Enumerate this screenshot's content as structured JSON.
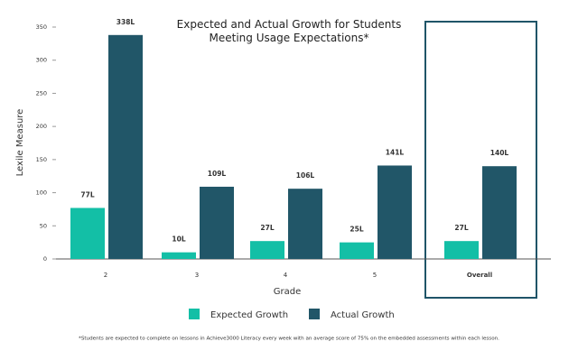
{
  "chart_data": {
    "type": "bar",
    "title": "Expected and Actual Growth for Students Meeting Usage Expectations*",
    "x_label": "Grade",
    "y_label": "Lexile Measure",
    "categories": [
      "2",
      "3",
      "4",
      "5",
      "Overall"
    ],
    "series": [
      {
        "name": "Expected Growth",
        "color": "#13bfa6",
        "values": [
          77,
          10,
          27,
          25,
          27
        ],
        "value_labels": [
          "77L",
          "10L",
          "27L",
          "25L",
          "27L"
        ]
      },
      {
        "name": "Actual Growth",
        "color": "#215668",
        "values": [
          338,
          109,
          106,
          141,
          140
        ],
        "value_labels": [
          "338L",
          "109L",
          "106L",
          "141L",
          "140L"
        ]
      }
    ],
    "ylim": [
      0,
      350
    ],
    "yticks": [
      0,
      50,
      100,
      150,
      200,
      250,
      300,
      350
    ],
    "footnote": "*Students are expected to complete on lessons in Achieve3000 Literacy every week with an average score of 75% on the embedded assessments within each lesson."
  }
}
